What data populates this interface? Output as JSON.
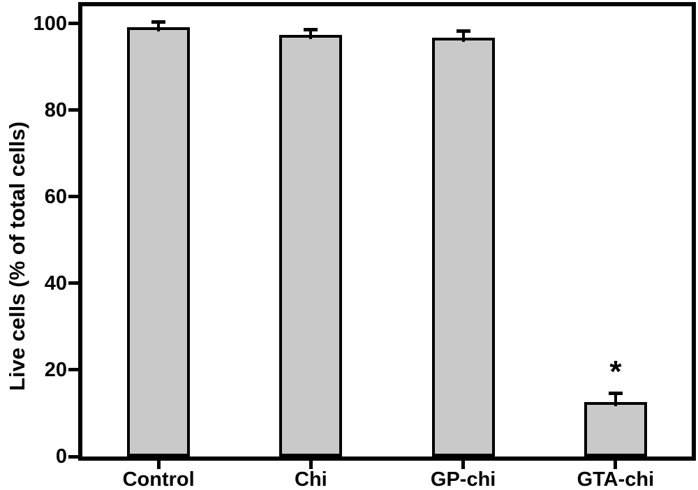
{
  "chart_data": {
    "type": "bar",
    "title": "",
    "xlabel": "",
    "ylabel": "Live cells (% of total cells)",
    "categories": [
      "Control",
      "Chi",
      "GP-chi",
      "GTA-chi"
    ],
    "values": [
      99.2,
      97.4,
      96.8,
      12.5
    ],
    "errors": [
      1.2,
      1.2,
      1.6,
      2.2
    ],
    "significance": [
      "",
      "",
      "",
      "*"
    ],
    "yticks": [
      0,
      20,
      40,
      60,
      80,
      100
    ],
    "ylim": [
      0,
      104
    ],
    "grid": false,
    "legend": "none",
    "bar_fill": "#c9c9c9",
    "bar_edge": "#000000",
    "axis_color": "#000000"
  }
}
